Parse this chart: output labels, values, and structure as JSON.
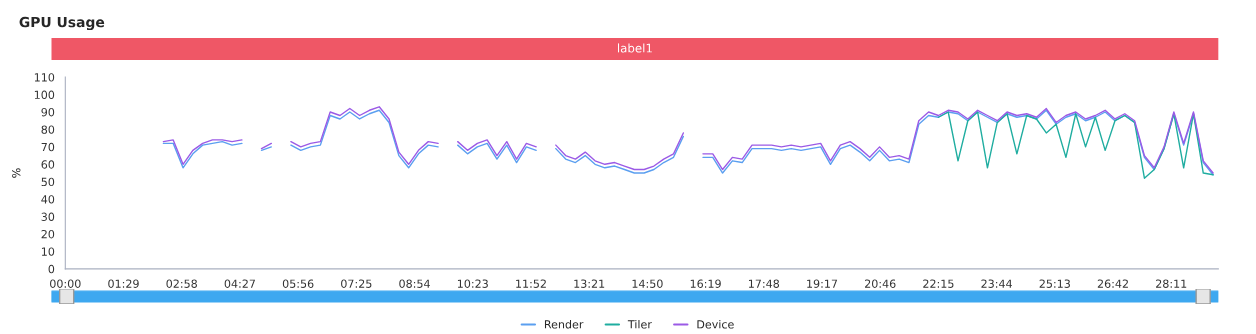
{
  "chart_data": {
    "type": "line",
    "title": "GPU Usage",
    "ylabel": "%",
    "annotations": [
      "label1"
    ],
    "x": [
      150,
      165,
      180,
      195,
      210,
      225,
      240,
      255,
      270,
      285,
      300,
      315,
      330,
      345,
      360,
      375,
      390,
      405,
      420,
      435,
      450,
      465,
      480,
      495,
      510,
      525,
      540,
      555,
      570,
      585,
      600,
      615,
      630,
      645,
      660,
      675,
      690,
      705,
      720,
      735,
      750,
      765,
      780,
      795,
      810,
      825,
      840,
      855,
      870,
      885,
      900,
      915,
      930,
      945,
      960,
      975,
      990,
      1005,
      1020,
      1035,
      1050,
      1065,
      1080,
      1095,
      1110,
      1125,
      1140,
      1155,
      1170,
      1185,
      1200,
      1215,
      1230,
      1245,
      1260,
      1275,
      1290,
      1305,
      1320,
      1335,
      1350,
      1365,
      1380,
      1395,
      1410,
      1425,
      1440,
      1455,
      1470,
      1485,
      1500,
      1515,
      1530,
      1545,
      1560,
      1575,
      1590,
      1605,
      1620,
      1635,
      1650,
      1665,
      1680,
      1695,
      1710,
      1725,
      1740,
      1755
    ],
    "series": [
      {
        "name": "Render",
        "color": "#5b9ff0",
        "values": [
          72,
          72,
          58,
          66,
          71,
          72,
          73,
          71,
          72,
          null,
          68,
          70,
          null,
          71,
          68,
          70,
          71,
          88,
          86,
          90,
          86,
          89,
          91,
          84,
          65,
          58,
          66,
          71,
          70,
          null,
          71,
          66,
          70,
          72,
          63,
          71,
          61,
          70,
          68,
          null,
          69,
          63,
          61,
          65,
          60,
          58,
          59,
          57,
          55,
          55,
          57,
          61,
          64,
          76,
          null,
          64,
          64,
          55,
          62,
          61,
          69,
          69,
          69,
          68,
          69,
          68,
          69,
          70,
          60,
          69,
          71,
          67,
          62,
          68,
          62,
          63,
          61,
          83,
          88,
          87,
          90,
          89,
          85,
          90,
          87,
          84,
          89,
          87,
          88,
          86,
          91,
          83,
          87,
          89,
          85,
          87,
          90,
          85,
          88,
          84,
          64,
          57,
          69,
          89,
          71,
          89,
          61,
          54
        ]
      },
      {
        "name": "Tiler",
        "color": "#1fada0",
        "values": [
          null,
          null,
          null,
          null,
          null,
          null,
          null,
          null,
          null,
          null,
          null,
          null,
          null,
          null,
          null,
          null,
          null,
          null,
          null,
          null,
          null,
          null,
          null,
          null,
          null,
          null,
          null,
          null,
          null,
          null,
          null,
          null,
          null,
          null,
          null,
          null,
          null,
          null,
          null,
          null,
          null,
          null,
          null,
          null,
          null,
          null,
          null,
          null,
          null,
          null,
          null,
          null,
          null,
          null,
          null,
          null,
          null,
          null,
          null,
          null,
          null,
          null,
          null,
          null,
          null,
          null,
          null,
          null,
          null,
          null,
          null,
          null,
          null,
          null,
          null,
          null,
          null,
          null,
          null,
          87,
          90,
          62,
          85,
          90,
          58,
          84,
          89,
          66,
          88,
          86,
          78,
          83,
          64,
          89,
          70,
          87,
          68,
          85,
          88,
          84,
          52,
          57,
          69,
          89,
          58,
          89,
          55,
          54
        ]
      },
      {
        "name": "Device",
        "color": "#9b5ae6",
        "values": [
          73,
          74,
          60,
          68,
          72,
          74,
          74,
          73,
          74,
          null,
          69,
          72,
          null,
          73,
          70,
          72,
          73,
          90,
          88,
          92,
          88,
          91,
          93,
          86,
          67,
          60,
          68,
          73,
          72,
          null,
          73,
          68,
          72,
          74,
          65,
          73,
          63,
          72,
          70,
          null,
          71,
          65,
          63,
          67,
          62,
          60,
          61,
          59,
          57,
          57,
          59,
          63,
          66,
          78,
          null,
          66,
          66,
          57,
          64,
          63,
          71,
          71,
          71,
          70,
          71,
          70,
          71,
          72,
          62,
          71,
          73,
          69,
          64,
          70,
          64,
          65,
          63,
          85,
          90,
          88,
          91,
          90,
          86,
          91,
          88,
          85,
          90,
          88,
          89,
          87,
          92,
          84,
          88,
          90,
          86,
          88,
          91,
          86,
          89,
          85,
          65,
          58,
          70,
          90,
          72,
          90,
          62,
          55
        ]
      }
    ],
    "xlim": [
      0,
      1763
    ],
    "xticks": [
      {
        "value": 0,
        "label": "00:00"
      },
      {
        "value": 89,
        "label": "01:29"
      },
      {
        "value": 178,
        "label": "02:58"
      },
      {
        "value": 267,
        "label": "04:27"
      },
      {
        "value": 356,
        "label": "05:56"
      },
      {
        "value": 445,
        "label": "07:25"
      },
      {
        "value": 534,
        "label": "08:54"
      },
      {
        "value": 623,
        "label": "10:23"
      },
      {
        "value": 712,
        "label": "11:52"
      },
      {
        "value": 801,
        "label": "13:21"
      },
      {
        "value": 890,
        "label": "14:50"
      },
      {
        "value": 979,
        "label": "16:19"
      },
      {
        "value": 1068,
        "label": "17:48"
      },
      {
        "value": 1157,
        "label": "19:17"
      },
      {
        "value": 1246,
        "label": "20:46"
      },
      {
        "value": 1335,
        "label": "22:15"
      },
      {
        "value": 1424,
        "label": "23:44"
      },
      {
        "value": 1513,
        "label": "25:13"
      },
      {
        "value": 1602,
        "label": "26:42"
      },
      {
        "value": 1691,
        "label": "28:11"
      }
    ],
    "ylim": [
      0,
      110
    ],
    "yticks": [
      0,
      10,
      20,
      30,
      40,
      50,
      60,
      70,
      80,
      90,
      100,
      110
    ],
    "grid": false,
    "legend": "bottom",
    "marker": "none",
    "line_style": "solid"
  }
}
